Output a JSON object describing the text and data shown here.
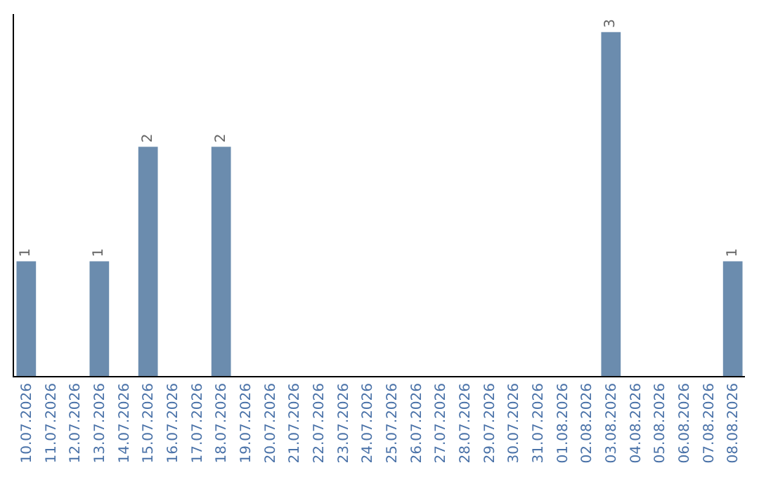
{
  "chart_data": {
    "type": "bar",
    "categories": [
      "10.07.2026",
      "11.07.2026",
      "12.07.2026",
      "13.07.2026",
      "14.07.2026",
      "15.07.2026",
      "16.07.2026",
      "17.07.2026",
      "18.07.2026",
      "19.07.2026",
      "20.07.2026",
      "21.07.2026",
      "22.07.2026",
      "23.07.2026",
      "24.07.2026",
      "25.07.2026",
      "26.07.2026",
      "27.07.2026",
      "28.07.2026",
      "29.07.2026",
      "30.07.2026",
      "31.07.2026",
      "01.08.2026",
      "02.08.2026",
      "03.08.2026",
      "04.08.2026",
      "05.08.2026",
      "06.08.2026",
      "07.08.2026",
      "08.08.2026"
    ],
    "values": [
      1,
      0,
      0,
      1,
      0,
      2,
      0,
      0,
      2,
      0,
      0,
      0,
      0,
      0,
      0,
      0,
      0,
      0,
      0,
      0,
      0,
      0,
      0,
      0,
      3,
      0,
      0,
      0,
      0,
      1
    ],
    "value_labels": [
      "1",
      null,
      null,
      "1",
      null,
      "2",
      null,
      null,
      "2",
      null,
      null,
      null,
      null,
      null,
      null,
      null,
      null,
      null,
      null,
      null,
      null,
      null,
      null,
      null,
      "3",
      null,
      null,
      null,
      null,
      "1"
    ],
    "color": "#6b8cae",
    "grid": false,
    "legend": false,
    "tick_labels": "x"
  }
}
